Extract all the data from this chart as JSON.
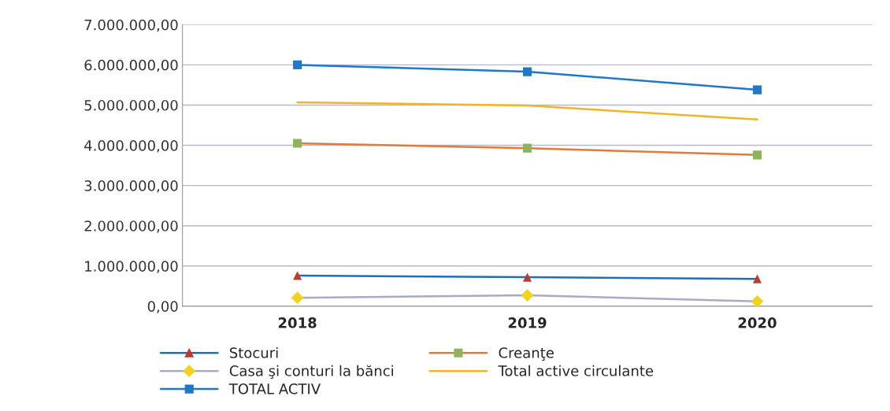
{
  "chart_data": {
    "type": "line",
    "categories": [
      "2018",
      "2019",
      "2020"
    ],
    "series": [
      {
        "name": "Stocuri",
        "color": "#1f6fb8",
        "marker": "triangle",
        "colors": [
          "#c0392b",
          "#c0392b",
          "#c0392b"
        ],
        "values": [
          760000,
          720000,
          680000
        ]
      },
      {
        "name": "Creanţe",
        "color": "#e07b39",
        "marker": "square",
        "colors": [
          "#8fb35a",
          "#8fb35a",
          "#8fb35a"
        ],
        "values": [
          4050000,
          3930000,
          3760000
        ]
      },
      {
        "name": "Casa şi conturi la bănci",
        "color": "#a9a9c8",
        "marker": "diamond",
        "colors": [
          "#f2d21b",
          "#f2d21b",
          "#f2d21b"
        ],
        "values": [
          210000,
          270000,
          120000
        ]
      },
      {
        "name": "Total active circulante",
        "color": "#f0b429",
        "marker": "none",
        "values": [
          5070000,
          4990000,
          4640000
        ]
      },
      {
        "name": "TOTAL ACTIV",
        "color": "#1f78c8",
        "marker": "square",
        "values": [
          6000000,
          5830000,
          5380000
        ]
      }
    ],
    "ylim": [
      0,
      7000000
    ],
    "yticks": [
      {
        "value": 0,
        "label": "0,00"
      },
      {
        "value": 1000000,
        "label": "1.000.000,00"
      },
      {
        "value": 2000000,
        "label": "2.000.000,00"
      },
      {
        "value": 3000000,
        "label": "3.000.000,00"
      },
      {
        "value": 4000000,
        "label": "4.000.000,00"
      },
      {
        "value": 5000000,
        "label": "5.000.000,00"
      },
      {
        "value": 6000000,
        "label": "6.000.000,00"
      },
      {
        "value": 7000000,
        "label": "7.000.000,00"
      }
    ],
    "grid": "y",
    "legend": "bottom",
    "line_style": "solid"
  }
}
